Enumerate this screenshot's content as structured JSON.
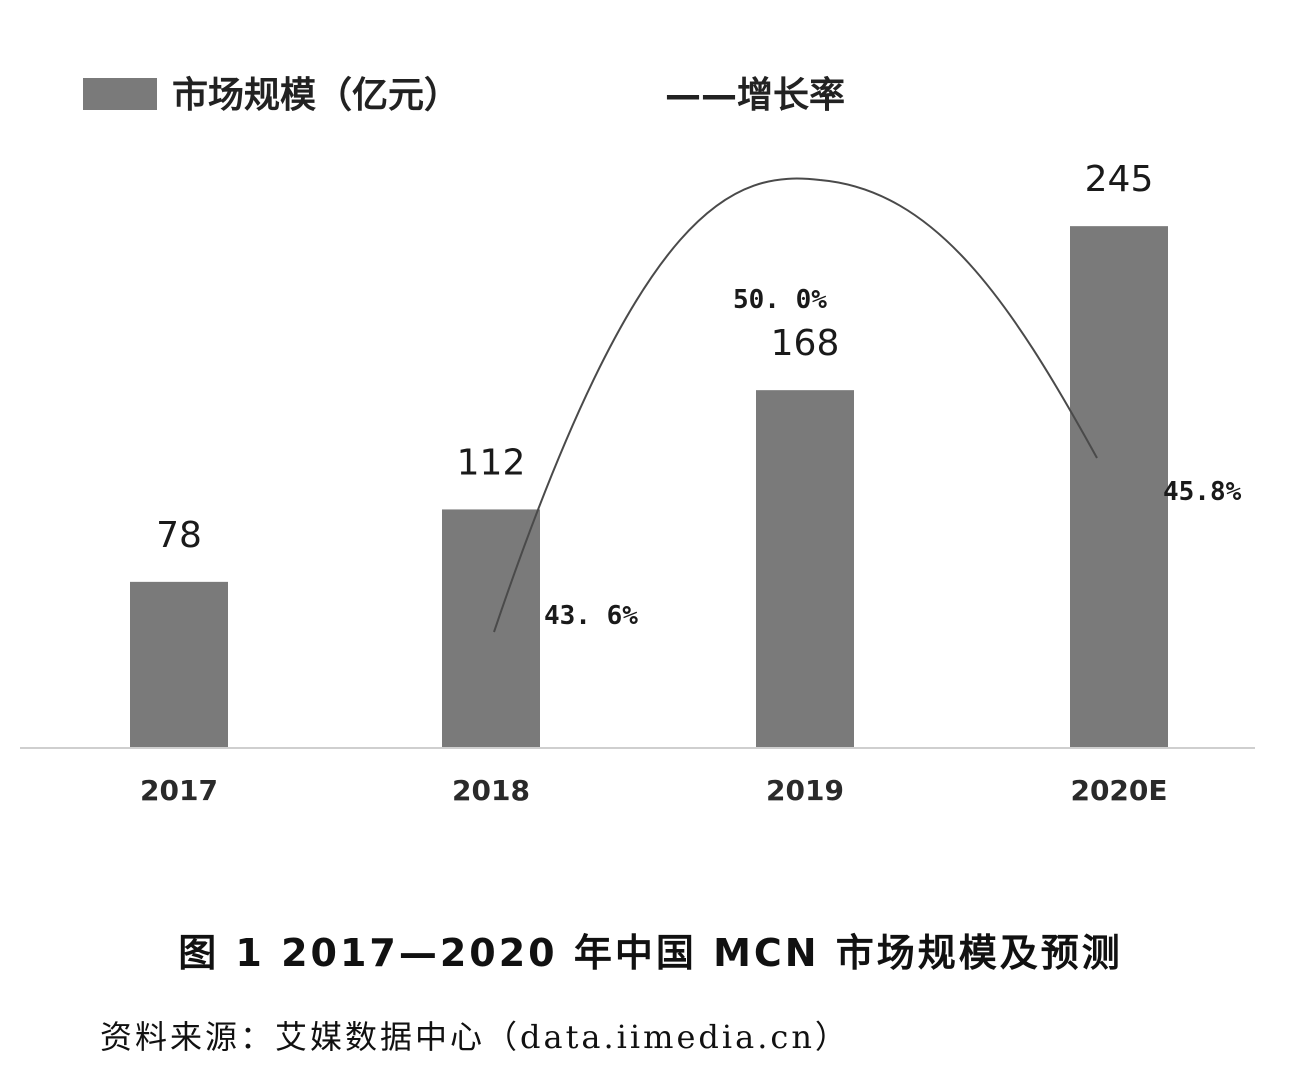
{
  "chart_data": {
    "type": "bar",
    "categories": [
      "2017",
      "2018",
      "2019",
      "2020E"
    ],
    "series": [
      {
        "name": "市场规模（亿元）",
        "type": "bar",
        "values": [
          78,
          112,
          168,
          245
        ],
        "color": "#7a7a7a"
      },
      {
        "name": "——增长率",
        "type": "line",
        "values": [
          null,
          43.6,
          50.0,
          45.8
        ],
        "labels": [
          "",
          "43. 6%",
          "50. 0%",
          "45.8%"
        ],
        "color": "#4a4a4a"
      }
    ],
    "value_labels": [
      "78",
      "112",
      "168",
      "245"
    ],
    "ylim": [
      0,
      260
    ],
    "legend_position": "top-left",
    "grid": false
  },
  "caption": "图 1  2017—2020 年中国 MCN 市场规模及预测",
  "source": "资料来源：艾媒数据中心（data.iimedia.cn）"
}
